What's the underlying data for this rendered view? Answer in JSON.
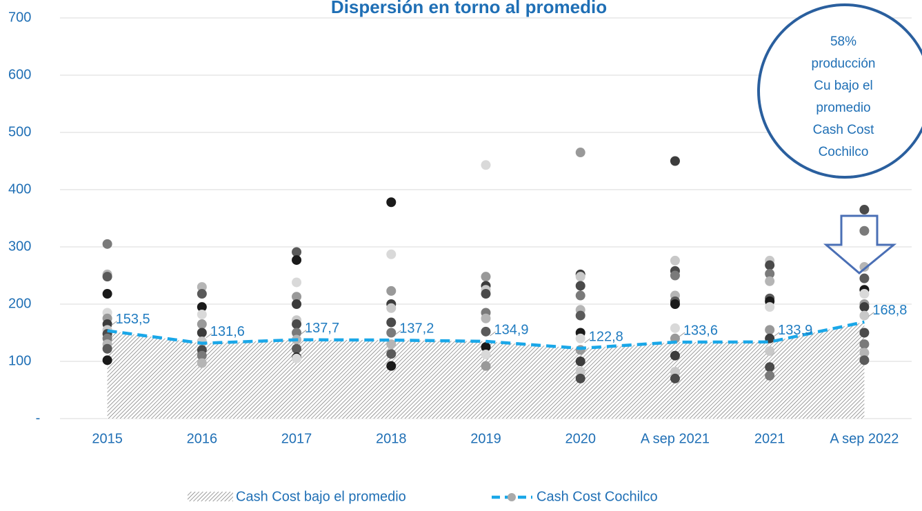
{
  "chart_data": {
    "type": "scatter",
    "title": "Dispersión en torno al promedio",
    "categories": [
      "2015",
      "2016",
      "2017",
      "2018",
      "2019",
      "2020",
      "A sep 2021",
      "2021",
      "A sep 2022"
    ],
    "ylim": [
      0,
      700
    ],
    "yticks": [
      {
        "value": 0,
        "label": "-"
      },
      100,
      200,
      300,
      400,
      500,
      600,
      700
    ],
    "grid": true,
    "points": [
      [
        305,
        252,
        248,
        218,
        185,
        175,
        165,
        155,
        148,
        140,
        130,
        122,
        102
      ],
      [
        230,
        218,
        195,
        182,
        165,
        150,
        135,
        120,
        110,
        97
      ],
      [
        291,
        277,
        238,
        213,
        200,
        172,
        165,
        150,
        138,
        122,
        107,
        105
      ],
      [
        378,
        287,
        223,
        200,
        193,
        168,
        150,
        130,
        113,
        92
      ],
      [
        443,
        248,
        232,
        225,
        218,
        185,
        175,
        152,
        125,
        112,
        92
      ],
      [
        465,
        252,
        248,
        232,
        215,
        190,
        180,
        150,
        140,
        120,
        100,
        82,
        70
      ],
      [
        450,
        276,
        258,
        250,
        215,
        205,
        200,
        158,
        140,
        110,
        82,
        70
      ],
      [
        276,
        268,
        253,
        240,
        210,
        205,
        195,
        155,
        140,
        118,
        90,
        75
      ],
      [
        365,
        328,
        265,
        245,
        225,
        218,
        200,
        195,
        180,
        150,
        130,
        115,
        102
      ]
    ],
    "point_colors": [
      "#7a7a7a",
      "#b5b5b5",
      "#5a5a5a",
      "#1a1a1a",
      "#d9d9d9",
      "#999999",
      "#3c3c3c",
      "#c8c8c8",
      "#4a4a4a"
    ],
    "series": [
      {
        "name": "Cash Cost bajo el promedio",
        "kind": "area",
        "color": "#555555",
        "values": [
          153.5,
          131.6,
          137.7,
          137.2,
          134.9,
          122.8,
          133.6,
          133.9,
          168.8
        ]
      },
      {
        "name": "Cash Cost Cochilco",
        "kind": "line",
        "color": "#1aa7e8",
        "values": [
          153.5,
          131.6,
          137.7,
          137.2,
          134.9,
          122.8,
          133.6,
          133.9,
          168.8
        ],
        "value_labels": [
          "153,5",
          "131,6",
          "137,7",
          "137,2",
          "134,9",
          "122,8",
          "133,6",
          "133,9",
          "168,8"
        ]
      }
    ],
    "annotation": [
      "58%",
      "producción",
      "Cu bajo el",
      "promedio",
      "Cash Cost",
      "Cochilco"
    ]
  }
}
